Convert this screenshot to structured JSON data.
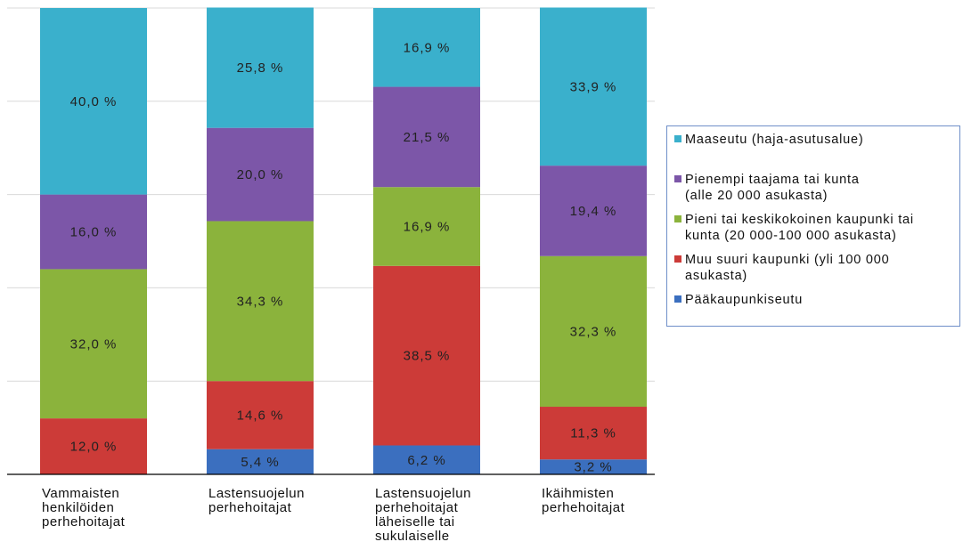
{
  "chart_data": {
    "type": "bar",
    "stacked": true,
    "percent_stacked": true,
    "title": "",
    "xlabel": "",
    "ylabel": "",
    "ylim": [
      0,
      100
    ],
    "grid": true,
    "legend_position": "right",
    "categories": [
      [
        "Vammaisten",
        "henkilöiden",
        "perhehoitajat"
      ],
      [
        "Lastensuojelun",
        "perhehoitajat"
      ],
      [
        "Lastensuojelun",
        "perhehoitajat",
        "läheiselle tai",
        "sukulaiselle"
      ],
      [
        "Ikäihmisten",
        "perhehoitajat"
      ]
    ],
    "series": [
      {
        "name": "Pääkaupunkiseutu",
        "color": "#3b6fbf",
        "values": [
          0,
          5.4,
          6.2,
          3.2
        ],
        "labels": [
          "",
          "5,4 %",
          "6,2 %",
          "3,2 %"
        ]
      },
      {
        "name": "Muu suuri kaupunki (yli 100 000 asukasta)",
        "legend_lines": [
          "Muu suuri kaupunki (yli 100 000",
          "asukasta)"
        ],
        "color": "#cc3b38",
        "values": [
          12.0,
          14.6,
          38.5,
          11.3
        ],
        "labels": [
          "12,0 %",
          "14,6 %",
          "38,5 %",
          "11,3 %"
        ]
      },
      {
        "name": "Pieni tai keskikokoinen kaupunki tai kunta (20 000-100 000 asukasta)",
        "legend_lines": [
          "Pieni tai keskikokoinen kaupunki tai",
          "kunta (20 000-100 000 asukasta)"
        ],
        "color": "#8bb33c",
        "values": [
          32.0,
          34.3,
          16.9,
          32.3
        ],
        "labels": [
          "32,0 %",
          "34,3 %",
          "16,9 %",
          "32,3 %"
        ]
      },
      {
        "name": "Pienempi taajama tai kunta (alle 20 000 asukasta)",
        "legend_lines": [
          "Pienempi taajama tai kunta",
          "(alle 20 000 asukasta)"
        ],
        "color": "#7c56a8",
        "values": [
          16.0,
          20.0,
          21.5,
          19.4
        ],
        "labels": [
          "16,0 %",
          "20,0 %",
          "21,5 %",
          "19,4 %"
        ]
      },
      {
        "name": "Maaseutu (haja-asutusalue)",
        "legend_lines": [
          "Maaseutu (haja-asutusalue)"
        ],
        "color": "#3ab0cc",
        "values": [
          40.0,
          25.8,
          16.9,
          33.9
        ],
        "labels": [
          "40,0 %",
          "25,8 %",
          "16,9 %",
          "33,9 %"
        ]
      }
    ],
    "legend_order": [
      4,
      3,
      2,
      1,
      0
    ]
  }
}
